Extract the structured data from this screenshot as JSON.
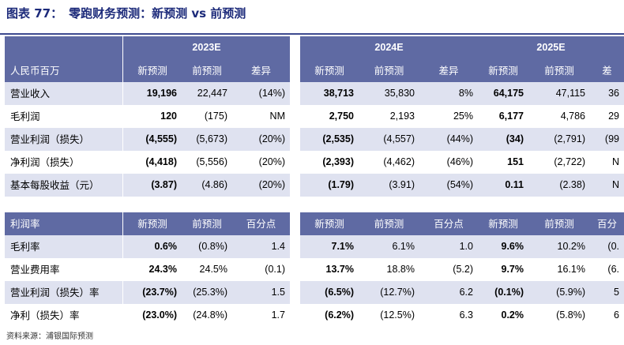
{
  "title": {
    "fig": "图表 77：",
    "text": "零跑财务预测：新预测 vs 前预测"
  },
  "years": [
    "2023E",
    "2024E",
    "2025E"
  ],
  "table1": {
    "header_label": "人民币百万",
    "col_labels": [
      "新预测",
      "前预测",
      "差异"
    ],
    "col_labels_2025": [
      "新预测",
      "前预测",
      "差"
    ],
    "rows": [
      {
        "label": "营业收入",
        "y2023": [
          "19,196",
          "22,447",
          "(14%)"
        ],
        "y2024": [
          "38,713",
          "35,830",
          "8%"
        ],
        "y2025": [
          "64,175",
          "47,115",
          "36"
        ]
      },
      {
        "label": "毛利润",
        "y2023": [
          "120",
          "(175)",
          "NM"
        ],
        "y2024": [
          "2,750",
          "2,193",
          "25%"
        ],
        "y2025": [
          "6,177",
          "4,786",
          "29"
        ]
      },
      {
        "label": "营业利润（损失）",
        "y2023": [
          "(4,555)",
          "(5,673)",
          "(20%)"
        ],
        "y2024": [
          "(2,535)",
          "(4,557)",
          "(44%)"
        ],
        "y2025": [
          "(34)",
          "(2,791)",
          "(99"
        ]
      },
      {
        "label": "净利润（损失）",
        "y2023": [
          "(4,418)",
          "(5,556)",
          "(20%)"
        ],
        "y2024": [
          "(2,393)",
          "(4,462)",
          "(46%)"
        ],
        "y2025": [
          "151",
          "(2,722)",
          "N"
        ]
      },
      {
        "label": "基本每股收益（元）",
        "y2023": [
          "(3.87)",
          "(4.86)",
          "(20%)"
        ],
        "y2024": [
          "(1.79)",
          "(3.91)",
          "(54%)"
        ],
        "y2025": [
          "0.11",
          "(2.38)",
          "N"
        ]
      }
    ]
  },
  "table2": {
    "header_label": "利润率",
    "col_labels": [
      "新预测",
      "前预测",
      "百分点"
    ],
    "col_labels_2025": [
      "新预测",
      "前预测",
      "百分"
    ],
    "rows": [
      {
        "label": "毛利率",
        "y2023": [
          "0.6%",
          "(0.8%)",
          "1.4"
        ],
        "y2024": [
          "7.1%",
          "6.1%",
          "1.0"
        ],
        "y2025": [
          "9.6%",
          "10.2%",
          "(0."
        ]
      },
      {
        "label": "营业费用率",
        "y2023": [
          "24.3%",
          "24.5%",
          "(0.1)"
        ],
        "y2024": [
          "13.7%",
          "18.8%",
          "(5.2)"
        ],
        "y2025": [
          "9.7%",
          "16.1%",
          "(6."
        ]
      },
      {
        "label": "营业利润（损失）率",
        "y2023": [
          "(23.7%)",
          "(25.3%)",
          "1.5"
        ],
        "y2024": [
          "(6.5%)",
          "(12.7%)",
          "6.2"
        ],
        "y2025": [
          "(0.1%)",
          "(5.9%)",
          "5"
        ]
      },
      {
        "label": "净利（损失）率",
        "y2023": [
          "(23.0%)",
          "(24.8%)",
          "1.7"
        ],
        "y2024": [
          "(6.2%)",
          "(12.5%)",
          "6.3"
        ],
        "y2025": [
          "0.2%",
          "(5.8%)",
          "6"
        ]
      }
    ]
  },
  "source": "资料来源：浦银国际预测",
  "colors": {
    "header": "#5f6aa3",
    "band": "#dfe2f0",
    "title": "#1c2a7a"
  }
}
